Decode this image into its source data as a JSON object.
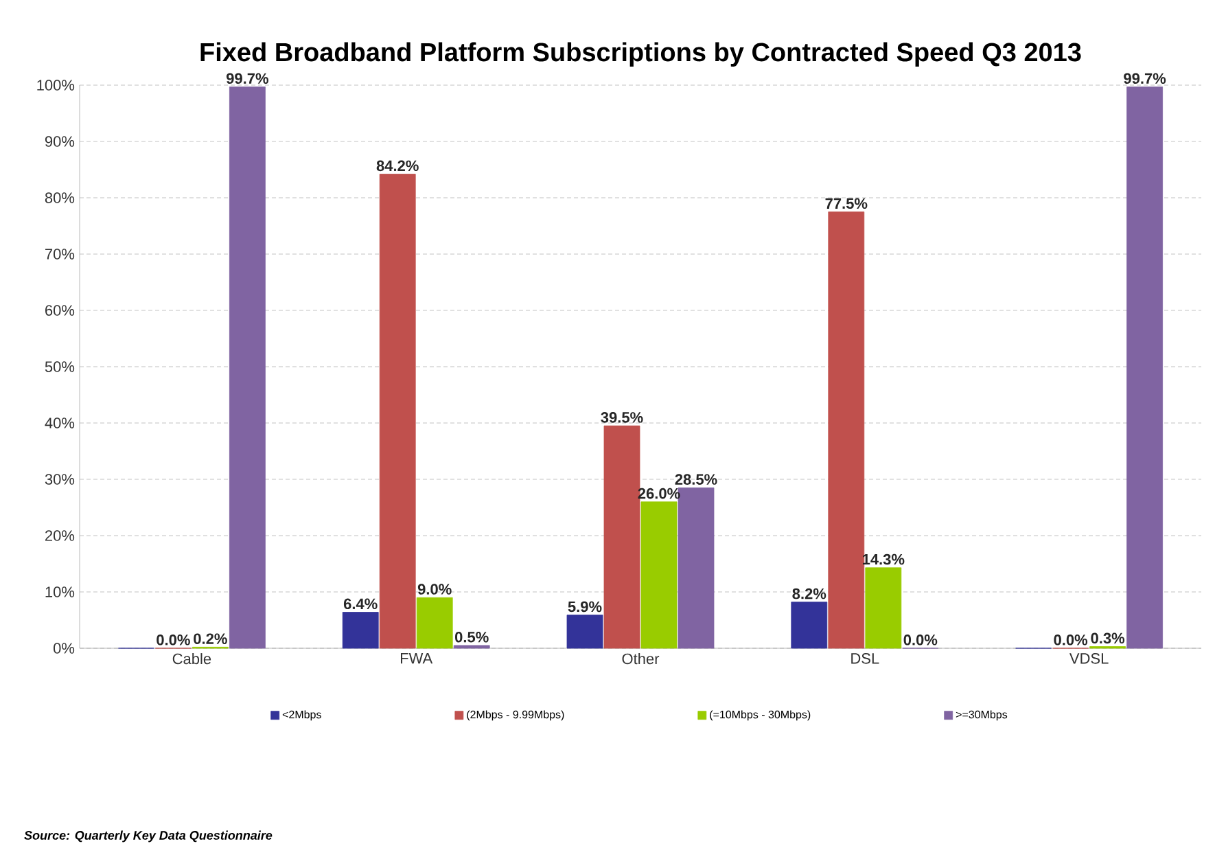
{
  "chart_data": {
    "type": "bar",
    "title": "Fixed Broadband  Platform Subscriptions by Contracted Speed Q3 2013",
    "categories": [
      "Cable",
      "FWA",
      "Other",
      "DSL",
      "VDSL"
    ],
    "series": [
      {
        "name": "<2Mbps",
        "color": "#333399",
        "values": [
          0,
          6.4,
          5.9,
          8.2,
          0
        ],
        "value_labels": [
          null,
          "6.4%",
          "5.9%",
          "8.2%",
          null
        ]
      },
      {
        "name": "(2Mbps - 9.99Mbps)",
        "color": "#c0504d",
        "values": [
          0,
          84.2,
          39.5,
          77.5,
          0
        ],
        "value_labels": [
          "0.0%",
          "84.2%",
          "39.5%",
          "77.5%",
          "0.0%"
        ]
      },
      {
        "name": "(=10Mbps - 30Mbps)",
        "color": "#99cc00",
        "values": [
          0.2,
          9.0,
          26.0,
          14.3,
          0.3
        ],
        "value_labels": [
          "0.2%",
          "9.0%",
          "26.0%",
          "14.3%",
          "0.3%"
        ]
      },
      {
        "name": ">=30Mbps",
        "color": "#8064a2",
        "values": [
          99.7,
          0.5,
          28.5,
          0.0,
          99.7
        ],
        "value_labels": [
          "99.7%",
          "0.5%",
          "28.5%",
          "0.0%",
          "99.7%"
        ]
      }
    ],
    "ylim": [
      0,
      100
    ],
    "yticks": [
      {
        "value": 0,
        "label": "0%"
      },
      {
        "value": 10,
        "label": "10%"
      },
      {
        "value": 20,
        "label": "20%"
      },
      {
        "value": 30,
        "label": "30%"
      },
      {
        "value": 40,
        "label": "40%"
      },
      {
        "value": 50,
        "label": "50%"
      },
      {
        "value": 60,
        "label": "60%"
      },
      {
        "value": 70,
        "label": "70%"
      },
      {
        "value": 80,
        "label": "80%"
      },
      {
        "value": 90,
        "label": "90%"
      },
      {
        "value": 100,
        "label": "100%"
      }
    ],
    "grid": "y",
    "legend": "bottom",
    "annotations": [
      "Source:  Quarterly Key Data Questionnaire"
    ]
  }
}
